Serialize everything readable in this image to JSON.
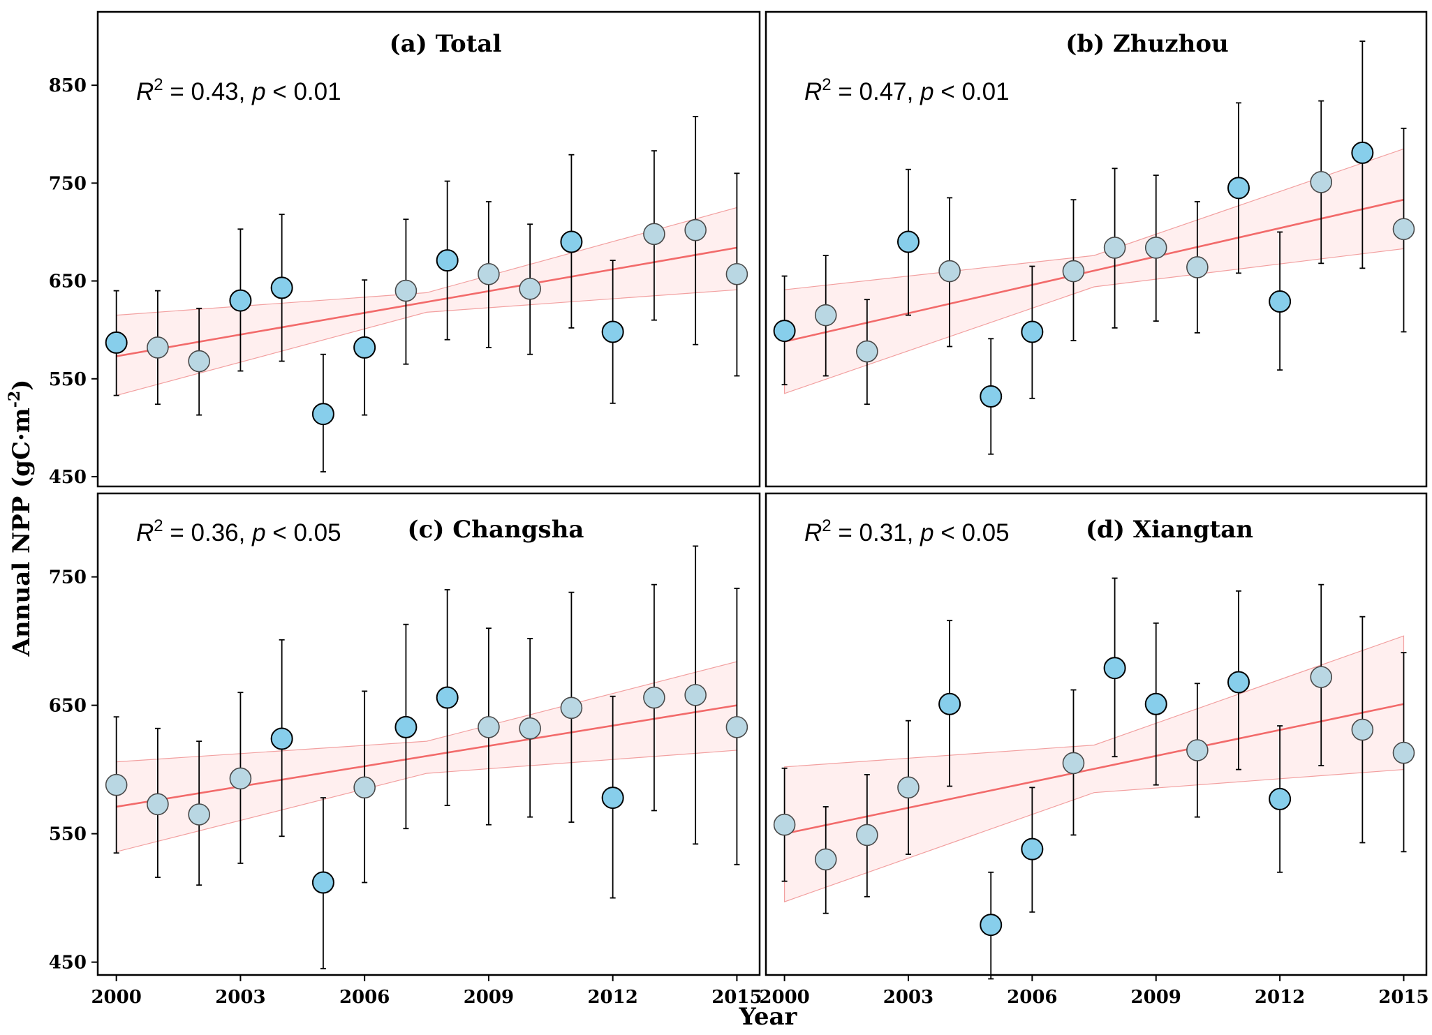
{
  "figure": {
    "ylabel": "Annual NPP (gC·m",
    "ylabel_sup": "-2",
    "ylabel_close": ")",
    "xlabel": "Year"
  },
  "chart_data": [
    {
      "type": "scatter",
      "title": "(a) Total",
      "stat": {
        "r2_label": "R",
        "r2_sup": "2",
        "r2_value": " = 0.43, ",
        "p_label": "p",
        "p_value": " < 0.01"
      },
      "x": [
        2000,
        2001,
        2002,
        2003,
        2004,
        2005,
        2006,
        2007,
        2008,
        2009,
        2010,
        2011,
        2012,
        2013,
        2014,
        2015
      ],
      "y": [
        587,
        582,
        568,
        630,
        643,
        514,
        582,
        640,
        671,
        657,
        642,
        690,
        598,
        698,
        702,
        657
      ],
      "err_low": [
        533,
        524,
        513,
        558,
        568,
        455,
        513,
        565,
        590,
        582,
        575,
        602,
        525,
        610,
        585,
        553
      ],
      "err_high": [
        640,
        640,
        622,
        703,
        718,
        575,
        651,
        713,
        752,
        731,
        708,
        779,
        671,
        783,
        818,
        760
      ],
      "highlight": [
        true,
        false,
        false,
        true,
        true,
        true,
        true,
        false,
        true,
        false,
        false,
        true,
        true,
        false,
        false,
        false
      ],
      "fit": {
        "x": [
          2000,
          2015
        ],
        "y": [
          573,
          684
        ]
      },
      "ci_low": {
        "x": [
          2000,
          2007.5,
          2015
        ],
        "y": [
          533,
          618,
          641
        ]
      },
      "ci_high": {
        "x": [
          2000,
          2007.5,
          2015
        ],
        "y": [
          615,
          638,
          725
        ]
      },
      "ylim": [
        440,
        925
      ],
      "xlim": [
        1999.55,
        2015.55
      ],
      "yticks": [
        450,
        550,
        650,
        750,
        850
      ],
      "ytick_labels": [
        "450",
        "550",
        "650",
        "750",
        "850"
      ],
      "xticks": [
        2000,
        2003,
        2006,
        2009,
        2012,
        2015
      ],
      "xtick_labels": [],
      "show_y_ticks": true,
      "show_x_ticks": false
    },
    {
      "type": "scatter",
      "title": "(b) Zhuzhou",
      "stat": {
        "r2_label": "R",
        "r2_sup": "2",
        "r2_value": " = 0.47, ",
        "p_label": "p",
        "p_value": " < 0.01"
      },
      "x": [
        2000,
        2001,
        2002,
        2003,
        2004,
        2005,
        2006,
        2007,
        2008,
        2009,
        2010,
        2011,
        2012,
        2013,
        2014,
        2015
      ],
      "y": [
        599,
        615,
        578,
        690,
        660,
        532,
        598,
        660,
        684,
        684,
        664,
        745,
        629,
        751,
        781,
        703
      ],
      "err_low": [
        544,
        553,
        524,
        615,
        583,
        473,
        530,
        589,
        602,
        609,
        597,
        658,
        559,
        668,
        663,
        598
      ],
      "err_high": [
        655,
        676,
        631,
        764,
        735,
        591,
        665,
        733,
        765,
        758,
        731,
        832,
        700,
        834,
        895,
        806
      ],
      "highlight": [
        true,
        false,
        false,
        true,
        false,
        true,
        true,
        false,
        false,
        false,
        false,
        true,
        true,
        false,
        true,
        false
      ],
      "fit": {
        "x": [
          2000,
          2015
        ],
        "y": [
          588,
          733
        ]
      },
      "ci_low": {
        "x": [
          2000,
          2007.5,
          2015
        ],
        "y": [
          535,
          644,
          683
        ]
      },
      "ci_high": {
        "x": [
          2000,
          2007.5,
          2015
        ],
        "y": [
          641,
          676,
          785
        ]
      },
      "ylim": [
        440,
        925
      ],
      "xlim": [
        1999.55,
        2015.55
      ],
      "yticks": [
        450,
        550,
        650,
        750,
        850
      ],
      "ytick_labels": [],
      "xticks": [
        2000,
        2003,
        2006,
        2009,
        2012,
        2015
      ],
      "xtick_labels": [],
      "show_y_ticks": false,
      "show_x_ticks": false
    },
    {
      "type": "scatter",
      "title": "(c) Changsha",
      "stat": {
        "r2_label": "R",
        "r2_sup": "2",
        "r2_value": " = 0.36, ",
        "p_label": "p",
        "p_value": " < 0.05"
      },
      "x": [
        2000,
        2001,
        2002,
        2003,
        2004,
        2005,
        2006,
        2007,
        2008,
        2009,
        2010,
        2011,
        2012,
        2013,
        2014,
        2015
      ],
      "y": [
        588,
        573,
        565,
        593,
        624,
        512,
        586,
        633,
        656,
        633,
        632,
        648,
        578,
        656,
        658,
        633
      ],
      "err_low": [
        535,
        516,
        510,
        527,
        548,
        445,
        512,
        554,
        572,
        557,
        563,
        559,
        500,
        568,
        542,
        526
      ],
      "err_high": [
        641,
        632,
        622,
        660,
        701,
        578,
        661,
        713,
        740,
        710,
        702,
        738,
        657,
        744,
        774,
        741
      ],
      "highlight": [
        false,
        false,
        false,
        false,
        true,
        true,
        false,
        true,
        true,
        false,
        false,
        false,
        true,
        false,
        false,
        false
      ],
      "fit": {
        "x": [
          2000,
          2015
        ],
        "y": [
          571,
          650
        ]
      },
      "ci_low": {
        "x": [
          2000,
          2007.5,
          2015
        ],
        "y": [
          536,
          597,
          615
        ]
      },
      "ci_high": {
        "x": [
          2000,
          2007.5,
          2015
        ],
        "y": [
          606,
          622,
          684
        ]
      },
      "ylim": [
        440,
        815
      ],
      "xlim": [
        1999.55,
        2015.55
      ],
      "yticks": [
        450,
        550,
        650,
        750
      ],
      "ytick_labels": [
        "450",
        "550",
        "650",
        "750"
      ],
      "xticks": [
        2000,
        2003,
        2006,
        2009,
        2012,
        2015
      ],
      "xtick_labels": [
        "2000",
        "2003",
        "2006",
        "2009",
        "2012",
        "2015"
      ],
      "show_y_ticks": true,
      "show_x_ticks": true
    },
    {
      "type": "scatter",
      "title": "(d) Xiangtan",
      "stat": {
        "r2_label": "R",
        "r2_sup": "2",
        "r2_value": " = 0.31, ",
        "p_label": "p",
        "p_value": " < 0.05"
      },
      "x": [
        2000,
        2001,
        2002,
        2003,
        2004,
        2005,
        2006,
        2007,
        2008,
        2009,
        2010,
        2011,
        2012,
        2013,
        2014,
        2015
      ],
      "y": [
        557,
        530,
        549,
        586,
        651,
        479,
        538,
        605,
        679,
        651,
        615,
        668,
        577,
        672,
        631,
        613
      ],
      "err_low": [
        513,
        488,
        501,
        534,
        587,
        437,
        489,
        549,
        610,
        588,
        563,
        600,
        520,
        603,
        543,
        536
      ],
      "err_high": [
        601,
        571,
        596,
        638,
        716,
        520,
        586,
        662,
        749,
        714,
        667,
        739,
        634,
        744,
        719,
        691
      ],
      "highlight": [
        false,
        false,
        false,
        false,
        true,
        true,
        true,
        false,
        true,
        true,
        false,
        true,
        true,
        false,
        false,
        false
      ],
      "fit": {
        "x": [
          2000,
          2015
        ],
        "y": [
          550,
          651
        ]
      },
      "ci_low": {
        "x": [
          2000,
          2007.5,
          2015
        ],
        "y": [
          497,
          582,
          600
        ]
      },
      "ci_high": {
        "x": [
          2000,
          2007.5,
          2015
        ],
        "y": [
          602,
          619,
          704
        ]
      },
      "ylim": [
        440,
        815
      ],
      "xlim": [
        1999.55,
        2015.55
      ],
      "yticks": [
        450,
        550,
        650,
        750
      ],
      "ytick_labels": [],
      "xticks": [
        2000,
        2003,
        2006,
        2009,
        2012,
        2015
      ],
      "xtick_labels": [
        "2000",
        "2003",
        "2006",
        "2009",
        "2012",
        "2015"
      ],
      "show_y_ticks": false,
      "show_x_ticks": true
    }
  ]
}
